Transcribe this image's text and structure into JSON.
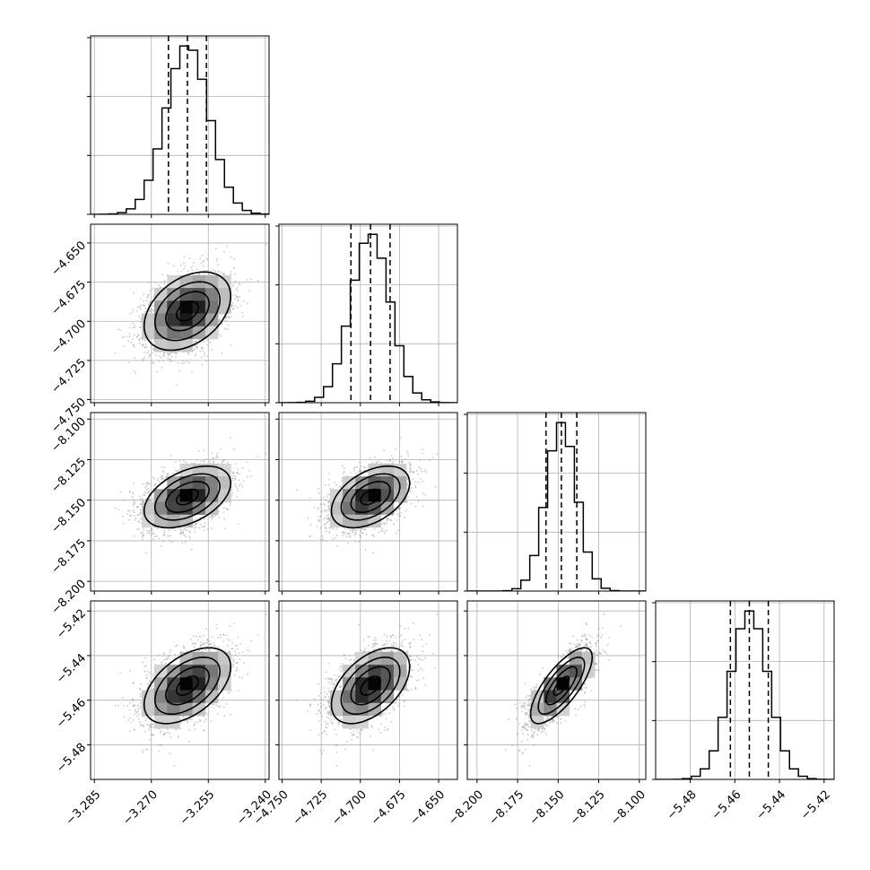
{
  "chart_data": {
    "type": "corner",
    "title": "",
    "parameters": [
      {
        "label": "",
        "mean": -3.2605,
        "std": 0.0057,
        "range": [
          -3.286,
          -3.239
        ],
        "ticks": [
          -3.285,
          -3.27,
          -3.255,
          -3.24
        ],
        "tick_labels": [
          "−3.285",
          "−3.270",
          "−3.255",
          "−3.240"
        ],
        "quantiles": [
          -3.2655,
          -3.2605,
          -3.2555
        ]
      },
      {
        "label": "",
        "mean": -4.6935,
        "std": 0.0125,
        "range": [
          -4.752,
          -4.638
        ],
        "ticks": [
          -4.75,
          -4.725,
          -4.7,
          -4.675,
          -4.65
        ],
        "tick_labels": [
          "−4.750",
          "−4.725",
          "−4.700",
          "−4.675",
          "−4.650"
        ],
        "quantiles": [
          -4.706,
          -4.6935,
          -4.681
        ]
      },
      {
        "label": "",
        "mean": -8.148,
        "std": 0.0095,
        "range": [
          -8.206,
          -8.096
        ],
        "ticks": [
          -8.2,
          -8.175,
          -8.15,
          -8.125,
          -8.1
        ],
        "tick_labels": [
          "−8.200",
          "−8.175",
          "−8.150",
          "−8.125",
          "−8.100"
        ],
        "quantiles": [
          -8.1575,
          -8.148,
          -8.1385
        ]
      },
      {
        "label": "",
        "mean": -5.4535,
        "std": 0.0085,
        "range": [
          -5.4955,
          -5.4155
        ],
        "ticks": [
          -5.48,
          -5.46,
          -5.44,
          -5.42
        ],
        "tick_labels": [
          "−5.48",
          "−5.46",
          "−5.44",
          "−5.42"
        ],
        "quantiles": [
          -5.462,
          -5.4535,
          -5.445
        ]
      }
    ],
    "correlations": [
      [
        1.0,
        0.38,
        0.45,
        0.5
      ],
      [
        0.38,
        1.0,
        0.45,
        0.5
      ],
      [
        0.45,
        0.45,
        1.0,
        0.75
      ],
      [
        0.5,
        0.5,
        0.75,
        1.0
      ]
    ],
    "contour_levels_sigma": [
      0.5,
      1.0,
      1.5,
      2.0
    ],
    "grid": true,
    "colors": {
      "hist": "#000000",
      "points": "#9a9a9a",
      "density_dark": "#000000",
      "grid": "#b0b0b0"
    }
  }
}
